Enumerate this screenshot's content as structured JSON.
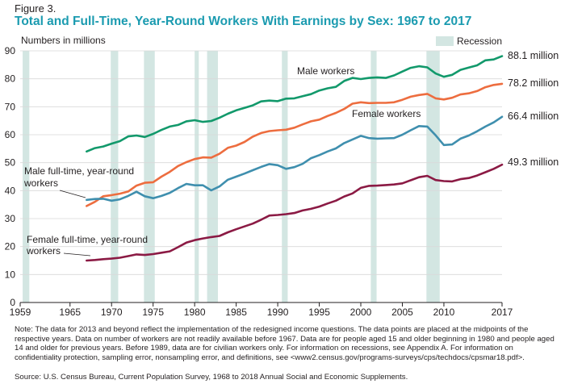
{
  "figure_label": "Figure 3.",
  "title": "Total and Full-Time, Year-Round Workers With Earnings by Sex: 1967 to 2017",
  "note": "Note: The data for 2013 and beyond reflect the implementation of the redesigned income questions. The data points are placed at the midpoints of the respective years. Data on number of workers are not readily available before 1967. Data are for people aged 15 and older beginning in 1980 and people aged 14 and older for previous years. Before 1989, data are for civilian workers only. For information on recessions, see Appendix A. For information on confidentiality protection, sampling error, nonsampling error, and definitions, see <www2.census.gov/programs-surveys/cps/techdocs/cpsmar18.pdf>.",
  "source": "Source: U.S. Census Bureau, Current Population Survey, 1968 to 2018 Annual Social and Economic Supplements.",
  "chart_data": {
    "type": "line",
    "title": "Total and Full-Time, Year-Round Workers With Earnings by Sex: 1967 to 2017",
    "ylabel": "Numbers in millions",
    "xlabel": "",
    "ylim": [
      0,
      90
    ],
    "xlim": [
      1959,
      2017
    ],
    "yticks": [
      0,
      10,
      20,
      30,
      40,
      50,
      60,
      70,
      80,
      90
    ],
    "xticks": [
      1959,
      1965,
      1970,
      1975,
      1980,
      1985,
      1990,
      1995,
      2000,
      2005,
      2010,
      2017
    ],
    "grid": true,
    "legend": {
      "label": "Recession",
      "position": "top-right"
    },
    "recessions": [
      [
        1959.3,
        1960.1
      ],
      [
        1969.9,
        1970.8
      ],
      [
        1973.9,
        1975.2
      ],
      [
        1980.0,
        1980.5
      ],
      [
        1981.5,
        1982.8
      ],
      [
        1990.5,
        1991.2
      ],
      [
        2001.2,
        2001.9
      ],
      [
        2007.9,
        2009.5
      ]
    ],
    "series": [
      {
        "name": "Male workers",
        "color": "#12996b",
        "end_label": "88.1 million",
        "x": [
          1967,
          1968,
          1969,
          1970,
          1971,
          1972,
          1973,
          1974,
          1975,
          1976,
          1977,
          1978,
          1979,
          1980,
          1981,
          1982,
          1983,
          1984,
          1985,
          1986,
          1987,
          1988,
          1989,
          1990,
          1991,
          1992,
          1993,
          1994,
          1995,
          1996,
          1997,
          1998,
          1999,
          2000,
          2001,
          2002,
          2003,
          2004,
          2005,
          2006,
          2007,
          2008,
          2009,
          2010,
          2011,
          2012,
          2013,
          2014,
          2015,
          2016,
          2017
        ],
        "values": [
          54.0,
          55.2,
          55.8,
          56.8,
          57.7,
          59.4,
          59.7,
          59.2,
          60.3,
          61.7,
          62.9,
          63.5,
          64.8,
          65.2,
          64.6,
          64.9,
          66.1,
          67.5,
          68.7,
          69.6,
          70.5,
          71.9,
          72.2,
          72.0,
          72.9,
          73.0,
          73.8,
          74.5,
          75.8,
          76.6,
          77.1,
          79.2,
          80.3,
          79.9,
          80.3,
          80.5,
          80.3,
          81.2,
          82.6,
          83.9,
          84.5,
          84.1,
          81.9,
          80.7,
          81.4,
          83.2,
          84.0,
          84.8,
          86.6,
          86.9,
          88.1
        ]
      },
      {
        "name": "Female workers",
        "color": "#ed6d3f",
        "end_label": "78.2 million",
        "x": [
          1967,
          1968,
          1969,
          1970,
          1971,
          1972,
          1973,
          1974,
          1975,
          1976,
          1977,
          1978,
          1979,
          1980,
          1981,
          1982,
          1983,
          1984,
          1985,
          1986,
          1987,
          1988,
          1989,
          1990,
          1991,
          1992,
          1993,
          1994,
          1995,
          1996,
          1997,
          1998,
          1999,
          2000,
          2001,
          2002,
          2003,
          2004,
          2005,
          2006,
          2007,
          2008,
          2009,
          2010,
          2011,
          2012,
          2013,
          2014,
          2015,
          2016,
          2017
        ],
        "values": [
          34.5,
          36.0,
          38.0,
          38.4,
          38.9,
          39.7,
          41.8,
          42.8,
          43.0,
          45.0,
          46.7,
          48.8,
          50.2,
          51.3,
          51.9,
          51.8,
          53.2,
          55.3,
          56.1,
          57.4,
          59.3,
          60.6,
          61.3,
          61.6,
          61.8,
          62.5,
          63.7,
          64.8,
          65.4,
          66.7,
          67.8,
          69.2,
          71.1,
          71.6,
          71.3,
          71.4,
          71.4,
          71.6,
          72.5,
          73.6,
          74.2,
          74.6,
          73.0,
          72.6,
          73.2,
          74.4,
          74.8,
          75.6,
          77.0,
          77.8,
          78.2
        ]
      },
      {
        "name": "Male full-time, year-round workers",
        "color": "#3f8fae",
        "end_label": "66.4 million",
        "x": [
          1967,
          1968,
          1969,
          1970,
          1971,
          1972,
          1973,
          1974,
          1975,
          1976,
          1977,
          1978,
          1979,
          1980,
          1981,
          1982,
          1983,
          1984,
          1985,
          1986,
          1987,
          1988,
          1989,
          1990,
          1991,
          1992,
          1993,
          1994,
          1995,
          1996,
          1997,
          1998,
          1999,
          2000,
          2001,
          2002,
          2003,
          2004,
          2005,
          2006,
          2007,
          2008,
          2009,
          2010,
          2011,
          2012,
          2013,
          2014,
          2015,
          2016,
          2017
        ],
        "values": [
          36.7,
          37.0,
          37.1,
          36.4,
          36.9,
          38.1,
          39.6,
          38.0,
          37.3,
          38.1,
          39.2,
          40.9,
          42.4,
          41.9,
          41.9,
          40.1,
          41.5,
          43.9,
          45.0,
          46.1,
          47.3,
          48.5,
          49.5,
          49.1,
          47.8,
          48.4,
          49.6,
          51.6,
          52.7,
          54.0,
          55.1,
          57.0,
          58.3,
          59.6,
          58.8,
          58.6,
          58.7,
          58.8,
          60.0,
          61.6,
          63.1,
          62.9,
          59.8,
          56.3,
          56.5,
          58.6,
          59.7,
          61.2,
          62.9,
          64.4,
          66.4
        ]
      },
      {
        "name": "Female full-time, year-round workers",
        "color": "#8b1a44",
        "end_label": "49.3 million",
        "x": [
          1967,
          1968,
          1969,
          1970,
          1971,
          1972,
          1973,
          1974,
          1975,
          1976,
          1977,
          1978,
          1979,
          1980,
          1981,
          1982,
          1983,
          1984,
          1985,
          1986,
          1987,
          1988,
          1989,
          1990,
          1991,
          1992,
          1993,
          1994,
          1995,
          1996,
          1997,
          1998,
          1999,
          2000,
          2001,
          2002,
          2003,
          2004,
          2005,
          2006,
          2007,
          2008,
          2009,
          2010,
          2011,
          2012,
          2013,
          2014,
          2015,
          2016,
          2017
        ],
        "values": [
          15.0,
          15.2,
          15.5,
          15.7,
          16.0,
          16.6,
          17.2,
          17.0,
          17.3,
          17.8,
          18.3,
          19.8,
          21.4,
          22.3,
          22.9,
          23.4,
          23.8,
          25.1,
          26.2,
          27.2,
          28.2,
          29.6,
          31.1,
          31.3,
          31.6,
          32.0,
          32.9,
          33.5,
          34.3,
          35.4,
          36.4,
          37.9,
          39.0,
          41.0,
          41.7,
          41.8,
          42.0,
          42.2,
          42.6,
          43.7,
          44.8,
          45.3,
          43.8,
          43.4,
          43.3,
          44.1,
          44.5,
          45.4,
          46.6,
          47.8,
          49.3
        ]
      }
    ],
    "annotations": [
      {
        "text": "Male workers",
        "series": 0
      },
      {
        "text": "Female workers",
        "series": 1
      },
      {
        "lines": [
          "Male full-time, year-round",
          "workers"
        ],
        "series": 2
      },
      {
        "lines": [
          "Female full-time, year-round",
          "workers"
        ],
        "series": 3
      }
    ]
  }
}
